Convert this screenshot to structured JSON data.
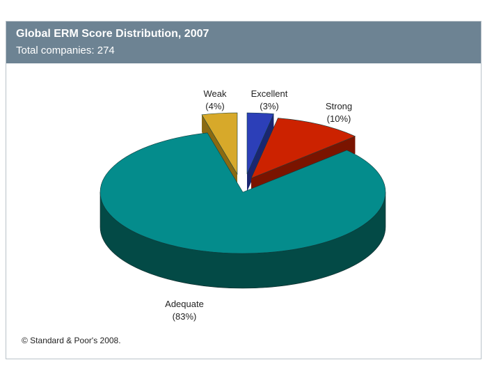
{
  "chart_data": {
    "type": "pie",
    "title": "Global ERM Score Distribution, 2007",
    "subtitle": "Total companies: 274",
    "slices": [
      {
        "label": "Excellent",
        "value_label": "(3%)",
        "value": 3,
        "color": "#2c3fb8",
        "side_color": "#1a2670"
      },
      {
        "label": "Strong",
        "value_label": "(10%)",
        "value": 10,
        "color": "#cc2200",
        "side_color": "#7a1400"
      },
      {
        "label": "Adequate",
        "value_label": "(83%)",
        "value": 83,
        "color": "#048c8c",
        "side_color": "#034a46"
      },
      {
        "label": "Weak",
        "value_label": "(4%)",
        "value": 4,
        "color": "#d7a92a",
        "side_color": "#8a6a12"
      }
    ],
    "copyright": "© Standard & Poor's 2008."
  }
}
